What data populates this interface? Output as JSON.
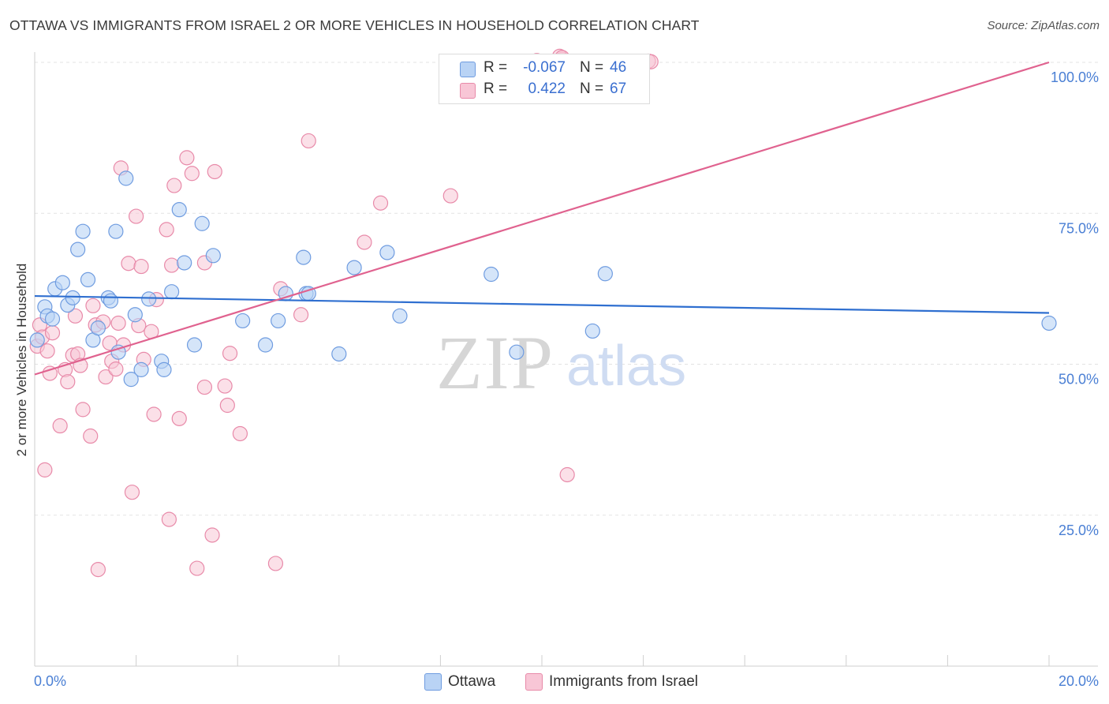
{
  "title": "OTTAWA VS IMMIGRANTS FROM ISRAEL 2 OR MORE VEHICLES IN HOUSEHOLD CORRELATION CHART",
  "source": "Source: ZipAtlas.com",
  "watermark": {
    "zip": "ZIP",
    "atlas": "atlas"
  },
  "colors": {
    "blue_fill": "#b9d3f5",
    "blue_stroke": "#6f9ce0",
    "blue_line": "#2f6fd0",
    "pink_fill": "#f8c6d6",
    "pink_stroke": "#e88aa9",
    "pink_line": "#e0628f",
    "tick_text": "#4a7fd4",
    "grid": "#e3e3e3"
  },
  "legend": {
    "rows": [
      {
        "r_label": "R =",
        "r_value": "-0.067",
        "n_label": "N =",
        "n_value": "46",
        "color": "#b9d3f5"
      },
      {
        "r_label": "R =",
        "r_value": "0.422",
        "n_label": "N =",
        "n_value": "67",
        "color": "#f8c6d6"
      }
    ]
  },
  "bottom_legend": [
    {
      "label": "Ottawa",
      "color": "#b9d3f5"
    },
    {
      "label": "Immigrants from Israel",
      "color": "#f8c6d6"
    }
  ],
  "chart_data": {
    "type": "scatter",
    "title": "OTTAWA VS IMMIGRANTS FROM ISRAEL 2 OR MORE VEHICLES IN HOUSEHOLD CORRELATION CHART",
    "xlabel": "",
    "ylabel": "2 or more Vehicles in Household",
    "xlim": [
      0,
      20
    ],
    "ylim": [
      0,
      105
    ],
    "x_tick_labels": [
      {
        "value": 0,
        "label": "0.0%"
      },
      {
        "value": 20,
        "label": "20.0%"
      }
    ],
    "y_tick_labels": [
      {
        "value": 25,
        "label": "25.0%"
      },
      {
        "value": 50,
        "label": "50.0%"
      },
      {
        "value": 75,
        "label": "75.0%"
      },
      {
        "value": 100,
        "label": "100.0%"
      }
    ],
    "grid_y": [
      25,
      50,
      75,
      100
    ],
    "series": [
      {
        "name": "Ottawa",
        "trend": {
          "x": [
            0,
            20
          ],
          "y": [
            61.3,
            58.5
          ]
        },
        "points": [
          [
            0.05,
            54
          ],
          [
            0.2,
            59.5
          ],
          [
            0.25,
            58
          ],
          [
            0.35,
            57.5
          ],
          [
            0.4,
            62.5
          ],
          [
            0.55,
            63.5
          ],
          [
            0.65,
            59.8
          ],
          [
            0.75,
            61
          ],
          [
            0.85,
            69
          ],
          [
            0.95,
            72
          ],
          [
            1.05,
            64
          ],
          [
            1.15,
            54
          ],
          [
            1.25,
            56
          ],
          [
            1.45,
            61
          ],
          [
            1.5,
            60.5
          ],
          [
            1.6,
            72
          ],
          [
            1.65,
            52
          ],
          [
            1.8,
            80.8
          ],
          [
            1.9,
            47.5
          ],
          [
            1.98,
            58.2
          ],
          [
            2.1,
            49.1
          ],
          [
            2.25,
            60.8
          ],
          [
            2.5,
            50.5
          ],
          [
            2.55,
            49.1
          ],
          [
            2.7,
            62
          ],
          [
            2.85,
            75.6
          ],
          [
            2.95,
            66.8
          ],
          [
            3.15,
            53.2
          ],
          [
            3.3,
            73.3
          ],
          [
            3.52,
            68
          ],
          [
            4.1,
            57.2
          ],
          [
            4.55,
            53.2
          ],
          [
            4.8,
            57.2
          ],
          [
            4.95,
            61.7
          ],
          [
            5.35,
            61.7
          ],
          [
            5.3,
            67.7
          ],
          [
            5.4,
            61.7
          ],
          [
            6.0,
            51.7
          ],
          [
            6.3,
            66
          ],
          [
            6.95,
            68.5
          ],
          [
            7.2,
            58
          ],
          [
            9.0,
            64.9
          ],
          [
            9.5,
            52
          ],
          [
            11.0,
            55.5
          ],
          [
            11.25,
            65
          ],
          [
            20.0,
            56.8
          ]
        ]
      },
      {
        "name": "Immigrants from Israel",
        "trend": {
          "x": [
            0,
            20
          ],
          "y": [
            48.3,
            100
          ]
        },
        "points": [
          [
            0.05,
            53
          ],
          [
            0.1,
            56.5
          ],
          [
            0.15,
            54.5
          ],
          [
            0.2,
            32.5
          ],
          [
            0.25,
            52.2
          ],
          [
            0.3,
            48.5
          ],
          [
            0.35,
            55.2
          ],
          [
            0.5,
            39.8
          ],
          [
            0.6,
            49.1
          ],
          [
            0.65,
            47.1
          ],
          [
            0.75,
            51.5
          ],
          [
            0.8,
            58
          ],
          [
            0.85,
            51.7
          ],
          [
            0.9,
            49.8
          ],
          [
            0.95,
            42.5
          ],
          [
            1.1,
            38.1
          ],
          [
            1.15,
            59.7
          ],
          [
            1.2,
            56.5
          ],
          [
            1.25,
            16
          ],
          [
            1.35,
            57
          ],
          [
            1.4,
            47.9
          ],
          [
            1.48,
            53.5
          ],
          [
            1.52,
            50.5
          ],
          [
            1.6,
            49.2
          ],
          [
            1.65,
            56.8
          ],
          [
            1.7,
            82.5
          ],
          [
            1.75,
            53.2
          ],
          [
            1.85,
            66.7
          ],
          [
            1.92,
            28.8
          ],
          [
            2.0,
            74.5
          ],
          [
            2.05,
            56.4
          ],
          [
            2.1,
            66.2
          ],
          [
            2.15,
            50.8
          ],
          [
            2.3,
            55.4
          ],
          [
            2.35,
            41.7
          ],
          [
            2.4,
            60.7
          ],
          [
            2.6,
            72.3
          ],
          [
            2.65,
            24.3
          ],
          [
            2.7,
            66.4
          ],
          [
            2.75,
            79.6
          ],
          [
            2.85,
            41
          ],
          [
            3.0,
            84.2
          ],
          [
            3.1,
            81.6
          ],
          [
            3.2,
            16.2
          ],
          [
            3.35,
            66.8
          ],
          [
            3.55,
            81.9
          ],
          [
            3.35,
            46.2
          ],
          [
            3.5,
            21.7
          ],
          [
            3.75,
            46.4
          ],
          [
            3.8,
            43.2
          ],
          [
            3.85,
            51.8
          ],
          [
            4.05,
            38.5
          ],
          [
            4.85,
            62.5
          ],
          [
            4.75,
            17
          ],
          [
            5.25,
            58.2
          ],
          [
            5.4,
            87
          ],
          [
            6.5,
            70.2
          ],
          [
            6.82,
            76.7
          ],
          [
            8.2,
            77.9
          ],
          [
            10.5,
            31.7
          ],
          [
            10.4,
            100.5
          ],
          [
            10.35,
            101
          ],
          [
            10.4,
            100.8
          ],
          [
            11.95,
            100
          ],
          [
            12.1,
            100.2
          ],
          [
            12.15,
            100.1
          ],
          [
            9.9,
            100.3
          ]
        ]
      }
    ]
  }
}
